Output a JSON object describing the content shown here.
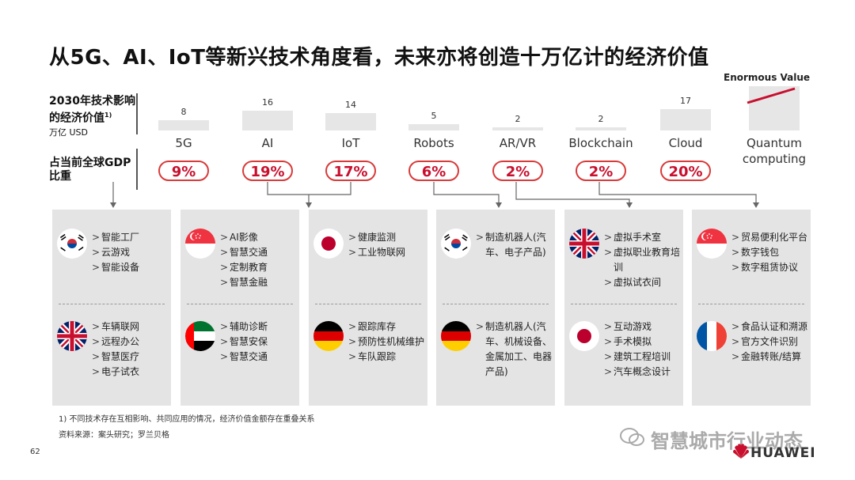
{
  "title": "从5G、AI、IoT等新兴技术角度看，未来亦将创造十万亿计的经济价值",
  "row1_label": "2030年技术影响的经济价值",
  "row1_sup": "1)",
  "row1_unit": "万亿 USD",
  "row2_label": "占当前全球GDP比重",
  "enormous_label": "Enormous Value",
  "chart_data": {
    "type": "bar",
    "categories": [
      "5G",
      "AI",
      "IoT",
      "Robots",
      "AR/VR",
      "Blockchain",
      "Cloud",
      "Quantum computing"
    ],
    "values": [
      8,
      16,
      14,
      5,
      2,
      2,
      17,
      null
    ],
    "value_labels": [
      "8",
      "16",
      "14",
      "5",
      "2",
      "2",
      "17",
      ""
    ],
    "gdp_share": [
      "9%",
      "19%",
      "17%",
      "6%",
      "2%",
      "2%",
      "20%",
      ""
    ],
    "ylabel": "万亿 USD"
  },
  "panels": [
    {
      "top": {
        "flag": "south-korea-flag",
        "items": [
          "智能工厂",
          "云游戏",
          "智能设备"
        ]
      },
      "bottom": {
        "flag": "uk-flag",
        "items": [
          "车辆联网",
          "远程办公",
          "智慧医疗",
          "电子试衣"
        ]
      }
    },
    {
      "top": {
        "flag": "singapore-flag",
        "items": [
          "AI影像",
          "智慧交通",
          "定制教育",
          "智慧金融"
        ]
      },
      "bottom": {
        "flag": "uae-flag",
        "items": [
          "辅助诊断",
          "智慧安保",
          "智慧交通"
        ]
      }
    },
    {
      "top": {
        "flag": "japan-flag",
        "items": [
          "健康监测",
          "工业物联网"
        ]
      },
      "bottom": {
        "flag": "germany-flag",
        "items": [
          "跟踪库存",
          "预防性机械维护",
          "车队跟踪"
        ]
      }
    },
    {
      "top": {
        "flag": "south-korea-flag",
        "items": [
          "制造机器人(汽车、电子产品)"
        ]
      },
      "bottom": {
        "flag": "germany-flag",
        "items": [
          "制造机器人(汽车、机械设备、金属加工、电器产品)"
        ]
      }
    },
    {
      "top": {
        "flag": "uk-flag",
        "items": [
          "虚拟手术室",
          "虚拟职业教育培训",
          "虚拟试衣间"
        ]
      },
      "bottom": {
        "flag": "japan-flag",
        "items": [
          "互动游戏",
          "手术模拟",
          "建筑工程培训",
          "汽车概念设计"
        ]
      }
    },
    {
      "top": {
        "flag": "singapore-flag",
        "items": [
          "贸易便利化平台",
          "数字钱包",
          "数字租赁协议"
        ]
      },
      "bottom": {
        "flag": "france-flag",
        "items": [
          "食品认证和溯源",
          "官方文件识别",
          "金融转账/结算"
        ]
      }
    }
  ],
  "footnote": "1) 不同技术存在互相影响、共同应用的情况，经济价值金额存在重叠关系",
  "source": "资料来源：案头研究；罗兰贝格",
  "page_number": "62",
  "watermark": "智慧城市行业动态",
  "brand": "HUAWEI"
}
